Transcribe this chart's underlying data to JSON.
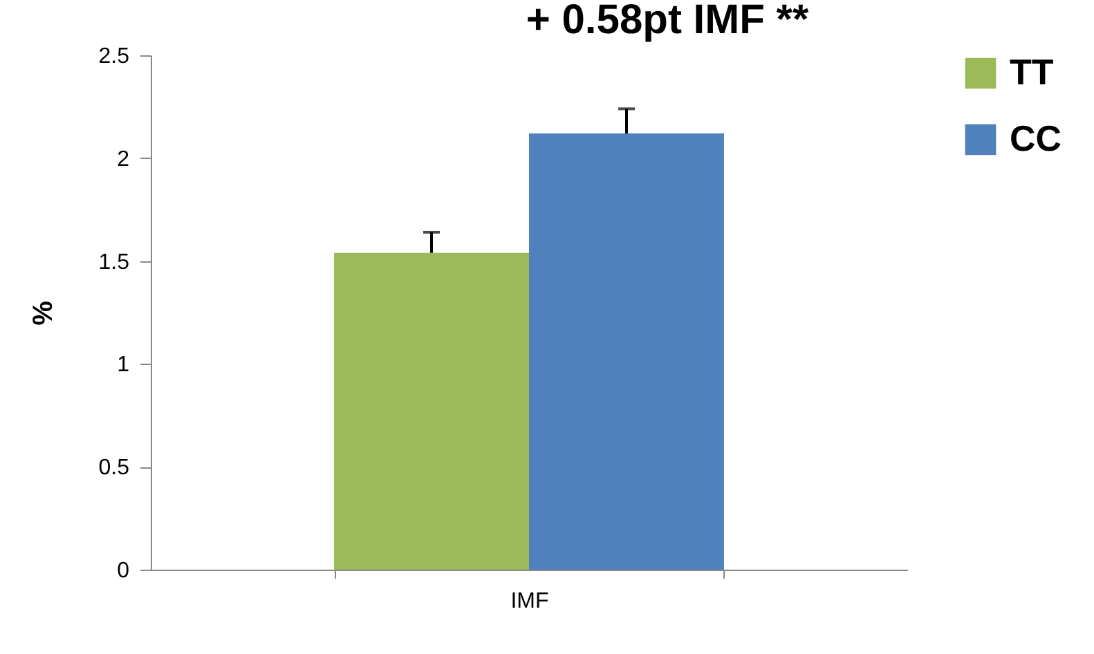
{
  "chart_data": {
    "type": "bar",
    "title": "+ 0.58pt IMF **",
    "ylabel": "%",
    "categories": [
      "IMF"
    ],
    "series": [
      {
        "name": "TT",
        "color": "#9bbb59",
        "values": [
          1.54
        ],
        "errors": [
          [
            1.54,
            1.64
          ]
        ]
      },
      {
        "name": "CC",
        "color": "#4f81bd",
        "values": [
          2.12
        ],
        "errors": [
          [
            2.12,
            2.24
          ]
        ]
      }
    ],
    "ylim": [
      0,
      2.5
    ],
    "yticks": [
      0,
      0.5,
      1,
      1.5,
      2,
      2.5
    ],
    "grid": false,
    "legend": "right"
  }
}
